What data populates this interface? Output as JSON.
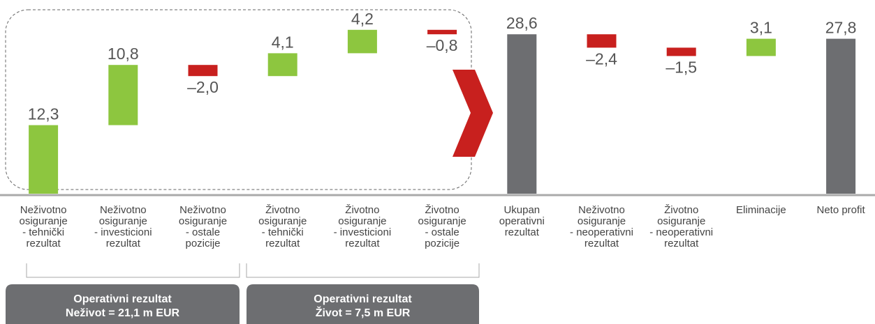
{
  "chart_data": {
    "type": "waterfall",
    "categories": [
      "Neživotno\nosiguranje\n- tehnički\nrezultat",
      "Neživotno\nosiguranje\n- investicioni\nrezultat",
      "Neživotno\nosiguranje\n- ostale\npozicije",
      "Životno\nosiguranje\n- tehnički\nrezultat",
      "Životno\nosiguranje\n- investicioni\nrezultat",
      "Životno\nosiguranje\n- ostale\npozicije",
      "Ukupan\noperativni\nrezultat",
      "Neživotno\nosiguranje\n- neoperativni\nrezultat",
      "Životno\nosiguranje\n- neoperativni\nrezultat",
      "Eliminacije",
      "Neto profit"
    ],
    "values": [
      12.3,
      10.8,
      -2.0,
      4.1,
      4.2,
      -0.8,
      28.6,
      -2.4,
      -1.5,
      3.1,
      27.8
    ],
    "value_labels": [
      "12,3",
      "10,8",
      "–2,0",
      "4,1",
      "4,2",
      "–0,8",
      "28,6",
      "–2,4",
      "–1,5",
      "3,1",
      "27,8"
    ],
    "is_total": [
      false,
      false,
      false,
      false,
      false,
      false,
      true,
      false,
      false,
      false,
      true
    ],
    "colors": {
      "total": "#6d6e71",
      "increase": "#8dc63f",
      "decrease": "#c8201e"
    },
    "ylim": [
      0,
      34
    ],
    "annotations": [
      "Operativni rezultat\nNeživot = 21,1 m EUR",
      "Operativni rezultat\nŽivot = 7,5 m EUR"
    ]
  }
}
